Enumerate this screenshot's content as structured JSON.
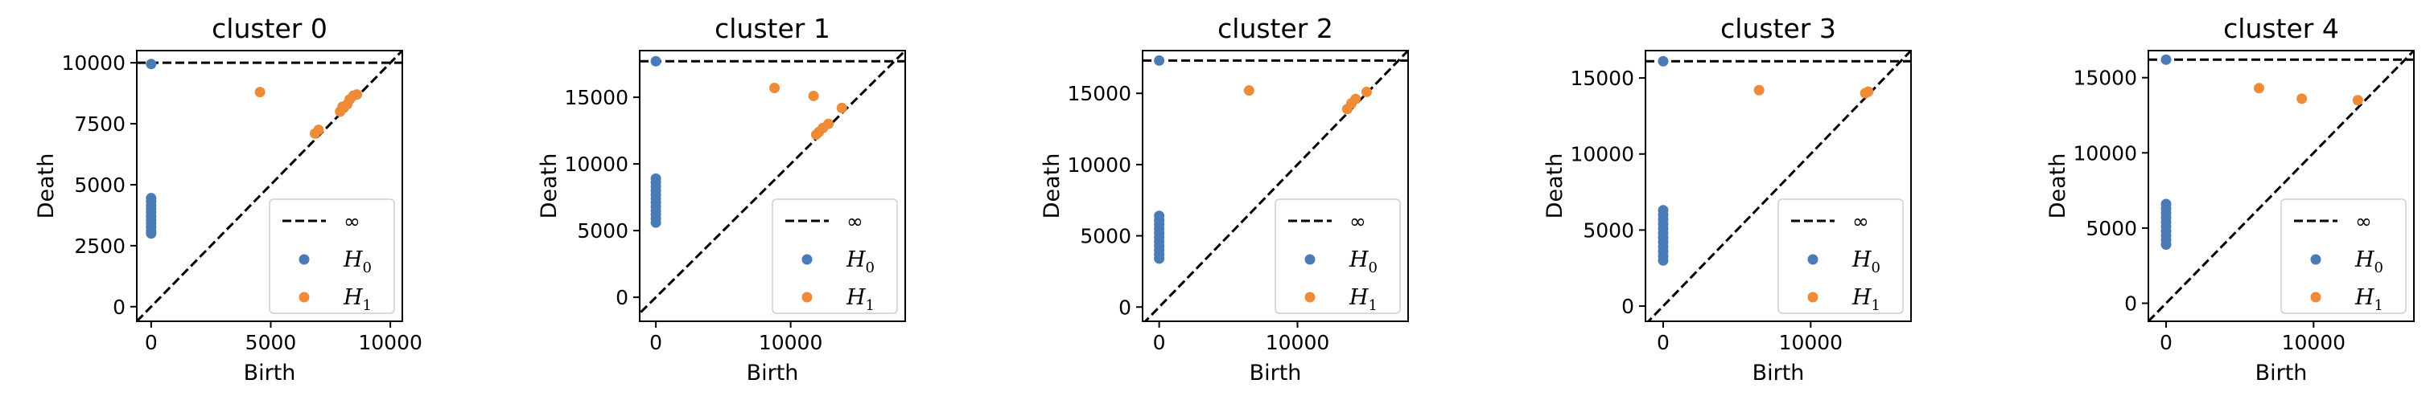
{
  "chart_data": [
    {
      "type": "scatter",
      "title": "cluster 0",
      "xlabel": "Birth",
      "ylabel": "Death",
      "xlim": [
        -600,
        10500
      ],
      "ylim": [
        -600,
        10500
      ],
      "xticks": [
        0,
        5000,
        10000
      ],
      "yticks": [
        0,
        2500,
        5000,
        7500,
        10000
      ],
      "infinity": 10000,
      "legend": [
        "∞",
        "H0",
        "H1"
      ],
      "series": [
        {
          "name": "H0",
          "color": "#4a7bb7",
          "points": [
            [
              0,
              9950
            ],
            [
              0,
              4450
            ],
            [
              0,
              4300
            ],
            [
              0,
              4150
            ],
            [
              0,
              4000
            ],
            [
              0,
              3850
            ],
            [
              0,
              3700
            ],
            [
              0,
              3550
            ],
            [
              0,
              3400
            ],
            [
              0,
              3250
            ],
            [
              0,
              3100
            ],
            [
              0,
              3000
            ]
          ]
        },
        {
          "name": "H1",
          "color": "#ef8a36",
          "points": [
            [
              4550,
              8800
            ],
            [
              6850,
              7100
            ],
            [
              7000,
              7250
            ],
            [
              7900,
              8000
            ],
            [
              8050,
              8150
            ],
            [
              8200,
              8300
            ],
            [
              8300,
              8500
            ],
            [
              8450,
              8650
            ],
            [
              8600,
              8700
            ],
            [
              8000,
              8200
            ]
          ]
        }
      ]
    },
    {
      "type": "scatter",
      "title": "cluster 1",
      "xlabel": "Birth",
      "ylabel": "Death",
      "xlim": [
        -1200,
        18500
      ],
      "ylim": [
        -1800,
        18500
      ],
      "xticks": [
        0,
        10000
      ],
      "yticks": [
        0,
        5000,
        10000,
        15000
      ],
      "infinity": 17700,
      "legend": [
        "∞",
        "H0",
        "H1"
      ],
      "series": [
        {
          "name": "H0",
          "color": "#4a7bb7",
          "points": [
            [
              0,
              17700
            ],
            [
              0,
              8900
            ],
            [
              0,
              8600
            ],
            [
              0,
              8300
            ],
            [
              0,
              8000
            ],
            [
              0,
              7700
            ],
            [
              0,
              7400
            ],
            [
              0,
              7100
            ],
            [
              0,
              6800
            ],
            [
              0,
              6500
            ],
            [
              0,
              6200
            ],
            [
              0,
              5900
            ],
            [
              0,
              5600
            ]
          ]
        },
        {
          "name": "H1",
          "color": "#ef8a36",
          "points": [
            [
              8800,
              15700
            ],
            [
              11700,
              15100
            ],
            [
              11900,
              12200
            ],
            [
              12100,
              12400
            ],
            [
              12400,
              12700
            ],
            [
              12800,
              13000
            ],
            [
              13800,
              14200
            ]
          ]
        }
      ]
    },
    {
      "type": "scatter",
      "title": "cluster 2",
      "xlabel": "Birth",
      "ylabel": "Death",
      "xlim": [
        -1200,
        18000
      ],
      "ylim": [
        -1000,
        18000
      ],
      "xticks": [
        0,
        10000
      ],
      "yticks": [
        0,
        5000,
        10000,
        15000
      ],
      "infinity": 17300,
      "legend": [
        "∞",
        "H0",
        "H1"
      ],
      "series": [
        {
          "name": "H0",
          "color": "#4a7bb7",
          "points": [
            [
              0,
              17300
            ],
            [
              0,
              6400
            ],
            [
              0,
              6100
            ],
            [
              0,
              5800
            ],
            [
              0,
              5500
            ],
            [
              0,
              5200
            ],
            [
              0,
              4900
            ],
            [
              0,
              4600
            ],
            [
              0,
              4300
            ],
            [
              0,
              4000
            ],
            [
              0,
              3700
            ],
            [
              0,
              3400
            ]
          ]
        },
        {
          "name": "H1",
          "color": "#ef8a36",
          "points": [
            [
              6500,
              15200
            ],
            [
              13600,
              13900
            ],
            [
              13900,
              14300
            ],
            [
              14200,
              14600
            ],
            [
              15000,
              15100
            ]
          ]
        }
      ]
    },
    {
      "type": "scatter",
      "title": "cluster 3",
      "xlabel": "Birth",
      "ylabel": "Death",
      "xlim": [
        -1200,
        16800
      ],
      "ylim": [
        -1000,
        16800
      ],
      "xticks": [
        0,
        10000
      ],
      "yticks": [
        0,
        5000,
        10000,
        15000
      ],
      "infinity": 16100,
      "legend": [
        "∞",
        "H0",
        "H1"
      ],
      "series": [
        {
          "name": "H0",
          "color": "#4a7bb7",
          "points": [
            [
              0,
              16100
            ],
            [
              0,
              6300
            ],
            [
              0,
              6000
            ],
            [
              0,
              5700
            ],
            [
              0,
              5400
            ],
            [
              0,
              5100
            ],
            [
              0,
              4800
            ],
            [
              0,
              4500
            ],
            [
              0,
              4200
            ],
            [
              0,
              3900
            ],
            [
              0,
              3600
            ],
            [
              0,
              3300
            ],
            [
              0,
              3000
            ]
          ]
        },
        {
          "name": "H1",
          "color": "#ef8a36",
          "points": [
            [
              6500,
              14200
            ],
            [
              13700,
              14000
            ],
            [
              13900,
              14100
            ]
          ]
        }
      ]
    },
    {
      "type": "scatter",
      "title": "cluster 4",
      "xlabel": "Birth",
      "ylabel": "Death",
      "xlim": [
        -1200,
        16800
      ],
      "ylim": [
        -1200,
        16800
      ],
      "xticks": [
        0,
        10000
      ],
      "yticks": [
        0,
        5000,
        10000,
        15000
      ],
      "infinity": 16200,
      "legend": [
        "∞",
        "H0",
        "H1"
      ],
      "series": [
        {
          "name": "H0",
          "color": "#4a7bb7",
          "points": [
            [
              0,
              16200
            ],
            [
              0,
              6600
            ],
            [
              0,
              6300
            ],
            [
              0,
              6000
            ],
            [
              0,
              5700
            ],
            [
              0,
              5400
            ],
            [
              0,
              5100
            ],
            [
              0,
              4800
            ],
            [
              0,
              4500
            ],
            [
              0,
              4200
            ],
            [
              0,
              3900
            ]
          ]
        },
        {
          "name": "H1",
          "color": "#ef8a36",
          "points": [
            [
              6300,
              14300
            ],
            [
              9200,
              13600
            ],
            [
              13000,
              13500
            ]
          ]
        }
      ]
    }
  ]
}
